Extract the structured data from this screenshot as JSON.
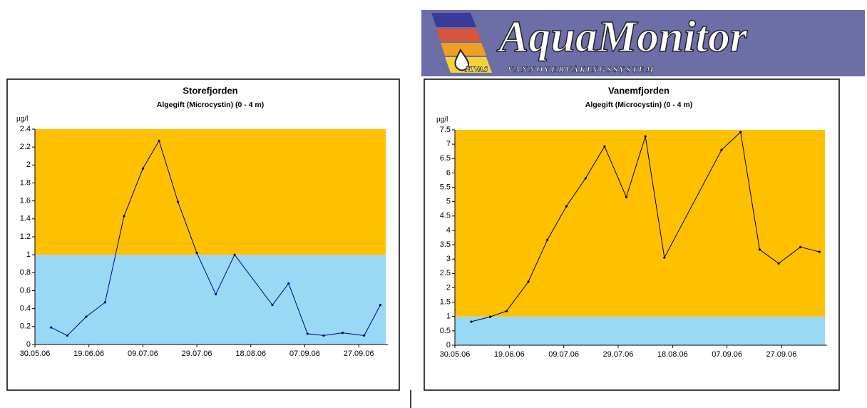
{
  "logo": {
    "title": "AquaMonitor",
    "left": "NIVAS",
    "right": "VANNOVERVÅKINGSSYSTEM"
  },
  "chart_data": [
    {
      "type": "line",
      "title": "Storefjorden",
      "subtitle": "Algegift (Microcystin) (0 - 4 m)",
      "y_label": "µg/l",
      "color": "#000080",
      "bands": [
        {
          "from": 0,
          "to": 1,
          "color": "#99d9f5"
        },
        {
          "from": 1,
          "to": 2.4,
          "color": "#ffc000"
        }
      ],
      "x": [
        "2006-06-05",
        "2006-06-11",
        "2006-06-18",
        "2006-06-25",
        "2006-07-02",
        "2006-07-09",
        "2006-07-15",
        "2006-07-22",
        "2006-07-29",
        "2006-08-05",
        "2006-08-12",
        "2006-08-26",
        "2006-09-01",
        "2006-09-08",
        "2006-09-14",
        "2006-09-21",
        "2006-09-29",
        "2006-10-05"
      ],
      "values": [
        0.19,
        0.1,
        0.31,
        0.47,
        1.43,
        1.96,
        2.27,
        1.59,
        1.02,
        0.56,
        1.0,
        0.44,
        0.68,
        0.12,
        0.1,
        0.13,
        0.1,
        0.44
      ],
      "xlim": [
        "2006-05-30",
        "2006-10-07"
      ],
      "xticks": [
        {
          "value": "2006-05-30",
          "label": "30.05.06"
        },
        {
          "value": "2006-06-19",
          "label": "19.06.06"
        },
        {
          "value": "2006-07-09",
          "label": "09.07.06"
        },
        {
          "value": "2006-07-29",
          "label": "29.07.06"
        },
        {
          "value": "2006-08-18",
          "label": "18.08.06"
        },
        {
          "value": "2006-09-07",
          "label": "07.09.06"
        },
        {
          "value": "2006-09-27",
          "label": "27.09.06"
        }
      ],
      "ylim": [
        0,
        2.4
      ],
      "yticks": [
        0,
        0.2,
        0.4,
        0.6,
        0.8,
        1,
        1.2,
        1.4,
        1.6,
        1.8,
        2,
        2.2,
        2.4
      ]
    },
    {
      "type": "line",
      "title": "Vanemfjorden",
      "subtitle": "Algegift (Microcystin) (0 - 4 m)",
      "y_label": "µg/l",
      "color": "#000000",
      "bands": [
        {
          "from": 0,
          "to": 1,
          "color": "#99d9f5"
        },
        {
          "from": 1,
          "to": 7.5,
          "color": "#ffc000"
        }
      ],
      "x": [
        "2006-06-05",
        "2006-06-12",
        "2006-06-18",
        "2006-06-26",
        "2006-07-03",
        "2006-07-10",
        "2006-07-17",
        "2006-07-24",
        "2006-08-01",
        "2006-08-08",
        "2006-08-15",
        "2006-09-05",
        "2006-09-12",
        "2006-09-19",
        "2006-09-26",
        "2006-10-04",
        "2006-10-11"
      ],
      "values": [
        0.82,
        0.99,
        1.19,
        2.21,
        3.67,
        4.84,
        5.81,
        6.92,
        5.16,
        7.27,
        3.05,
        6.8,
        7.42,
        3.33,
        2.85,
        3.42,
        3.25
      ],
      "xlim": [
        "2006-05-30",
        "2006-10-13"
      ],
      "xticks": [
        {
          "value": "2006-05-30",
          "label": "30.05.06"
        },
        {
          "value": "2006-06-19",
          "label": "19.06.06"
        },
        {
          "value": "2006-07-09",
          "label": "09.07.06"
        },
        {
          "value": "2006-07-29",
          "label": "29.07.06"
        },
        {
          "value": "2006-08-18",
          "label": "18.08.06"
        },
        {
          "value": "2006-09-07",
          "label": "07.09.06"
        },
        {
          "value": "2006-09-27",
          "label": "27.09.06"
        }
      ],
      "ylim": [
        0,
        7.5
      ],
      "yticks": [
        0,
        0.5,
        1,
        1.5,
        2,
        2.5,
        3,
        3.5,
        4,
        4.5,
        5,
        5.5,
        6,
        6.5,
        7,
        7.5
      ]
    }
  ]
}
